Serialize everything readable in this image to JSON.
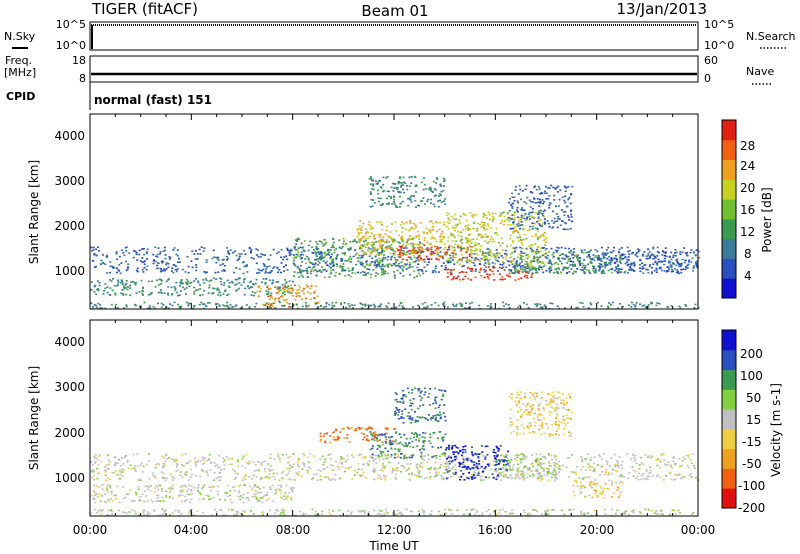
{
  "header": {
    "station": "TIGER (fitACF)",
    "beam": "Beam 01",
    "date": "13/Jan/2013"
  },
  "strip": {
    "nsky_label": "N.Sky",
    "nsky_ticks": [
      "10^5",
      "10^0"
    ],
    "nsearch_label": "N.Search",
    "nsearch_ticks": [
      "10^5",
      "10^0"
    ],
    "freq_label": "Freq.",
    "freq_unit": "[MHz]",
    "freq_ticks": [
      "18",
      "8"
    ],
    "nave_label": "Nave",
    "nave_ticks": [
      "60",
      "0"
    ],
    "cpid_label": "CPID",
    "cpid_value": "normal (fast) 151"
  },
  "xaxis": {
    "label": "Time UT",
    "ticks": [
      "00:00",
      "04:00",
      "08:00",
      "12:00",
      "16:00",
      "20:00",
      "00:00"
    ]
  },
  "power_panel": {
    "ylabel": "Slant Range [km]",
    "yticks": [
      "4000",
      "3000",
      "2000",
      "1000"
    ],
    "colorbar_label": "Power [dB]",
    "colorbar_ticks": [
      "28",
      "24",
      "20",
      "16",
      "12",
      "8",
      "4"
    ]
  },
  "velocity_panel": {
    "ylabel": "Slant Range [km]",
    "yticks": [
      "4000",
      "3000",
      "2000",
      "1000"
    ],
    "colorbar_label": "Velocity [m s-1]",
    "colorbar_ticks": [
      "200",
      "100",
      "50",
      "15",
      "-15",
      "-50",
      "-100",
      "-200"
    ]
  },
  "chart_data": [
    {
      "type": "heatmap",
      "title": "Power",
      "xlabel": "Time UT",
      "ylabel": "Slant Range [km]",
      "xlim": [
        0,
        24
      ],
      "ylim": [
        180,
        4600
      ],
      "colorbar": {
        "label": "Power [dB]",
        "range": [
          0,
          30
        ],
        "ticks": [
          4,
          8,
          12,
          16,
          20,
          24,
          28
        ]
      },
      "colors": [
        "#1010d0",
        "#2a50c0",
        "#3a7a9a",
        "#3a9a50",
        "#70c030",
        "#c8d020",
        "#f0a020",
        "#f06010",
        "#e02010"
      ],
      "scatter_regions": [
        {
          "t": [
            0,
            24
          ],
          "range": [
            1000,
            1600
          ],
          "power": 6
        },
        {
          "t": [
            0,
            8
          ],
          "range": [
            500,
            900
          ],
          "power": 10
        },
        {
          "t": [
            6.5,
            9
          ],
          "range": [
            250,
            750
          ],
          "power": 22
        },
        {
          "t": [
            8,
            13
          ],
          "range": [
            900,
            1800
          ],
          "power": 12
        },
        {
          "t": [
            10.5,
            14
          ],
          "range": [
            1400,
            2200
          ],
          "power": 20
        },
        {
          "t": [
            12,
            15
          ],
          "range": [
            1300,
            1650
          ],
          "power": 26
        },
        {
          "t": [
            14,
            17.5
          ],
          "range": [
            850,
            1150
          ],
          "power": 27
        },
        {
          "t": [
            14,
            18
          ],
          "range": [
            1200,
            2400
          ],
          "power": 18
        },
        {
          "t": [
            16.5,
            21
          ],
          "range": [
            1000,
            1500
          ],
          "power": 12
        },
        {
          "t": [
            16.5,
            19
          ],
          "range": [
            2000,
            3000
          ],
          "power": 6
        },
        {
          "t": [
            11,
            14
          ],
          "range": [
            2500,
            3200
          ],
          "power": 10
        },
        {
          "t": [
            20,
            24
          ],
          "range": [
            1000,
            1500
          ],
          "power": 6
        },
        {
          "t": [
            0,
            24
          ],
          "range": [
            200,
            350
          ],
          "power": 10
        }
      ]
    },
    {
      "type": "heatmap",
      "title": "Velocity",
      "xlabel": "Time UT",
      "ylabel": "Slant Range [km]",
      "xlim": [
        0,
        24
      ],
      "ylim": [
        180,
        4600
      ],
      "colorbar": {
        "label": "Velocity [m s-1]",
        "range": [
          -250,
          250
        ],
        "ticks": [
          200,
          100,
          50,
          15,
          -15,
          -50,
          -100,
          -200
        ]
      },
      "colors": [
        "#e01010",
        "#f06010",
        "#f0a020",
        "#f0d040",
        "#c0c0c0",
        "#80d040",
        "#3a9a50",
        "#2a50c0",
        "#1010d0"
      ],
      "scatter_regions": [
        {
          "t": [
            0,
            24
          ],
          "range": [
            1000,
            1600
          ],
          "velocity": 0
        },
        {
          "t": [
            0,
            8
          ],
          "range": [
            500,
            900
          ],
          "velocity": 0
        },
        {
          "t": [
            9,
            12
          ],
          "range": [
            1850,
            2200
          ],
          "velocity": -150
        },
        {
          "t": [
            12,
            14
          ],
          "range": [
            2300,
            3100
          ],
          "velocity": 150
        },
        {
          "t": [
            14,
            16.5
          ],
          "range": [
            1000,
            1800
          ],
          "velocity": 200
        },
        {
          "t": [
            16,
            18.5
          ],
          "range": [
            1000,
            1600
          ],
          "velocity": 40
        },
        {
          "t": [
            16.5,
            19
          ],
          "range": [
            2000,
            3000
          ],
          "velocity": -60
        },
        {
          "t": [
            11,
            14
          ],
          "range": [
            1500,
            2100
          ],
          "velocity": 120
        },
        {
          "t": [
            19,
            21
          ],
          "range": [
            600,
            1000
          ],
          "velocity": -60
        },
        {
          "t": [
            0,
            24
          ],
          "range": [
            200,
            350
          ],
          "velocity": 10
        }
      ]
    }
  ]
}
